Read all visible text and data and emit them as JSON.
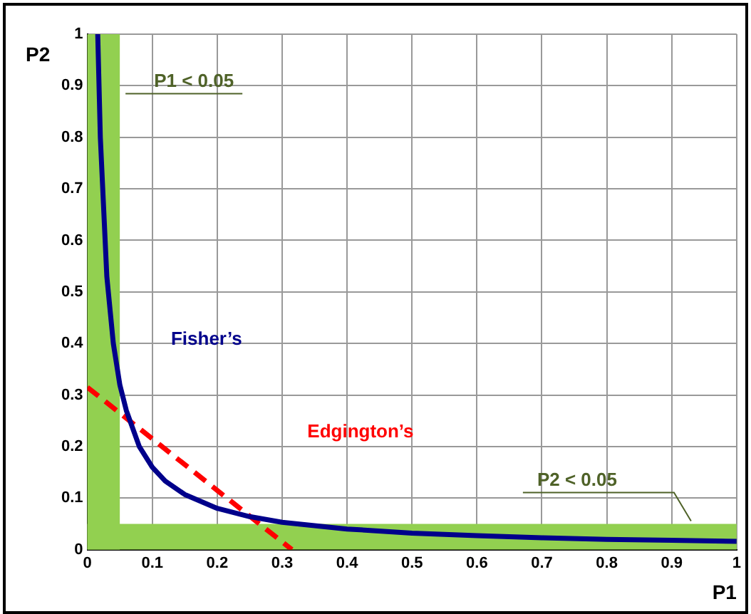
{
  "chart_data": {
    "type": "line",
    "xlabel": "P1",
    "ylabel": "P2",
    "xlim": [
      0,
      1
    ],
    "ylim": [
      0,
      1
    ],
    "xticks": [
      0,
      0.1,
      0.2,
      0.3,
      0.4,
      0.5,
      0.6,
      0.7,
      0.8,
      0.9,
      1
    ],
    "yticks": [
      0,
      0.1,
      0.2,
      0.3,
      0.4,
      0.5,
      0.6,
      0.7,
      0.8,
      0.9,
      1
    ],
    "grid": true,
    "legend": false,
    "marker": "none",
    "bands": [
      {
        "axis": "x",
        "from": 0,
        "to": 0.05,
        "label": "P1 < 0.05",
        "color": "#92d050"
      },
      {
        "axis": "y",
        "from": 0,
        "to": 0.05,
        "label": "P2 < 0.05",
        "color": "#92d050"
      }
    ],
    "series": [
      {
        "name": "Fisher’s",
        "color": "#00008b",
        "line_style": "solid",
        "x": [
          0.016,
          0.02,
          0.03,
          0.04,
          0.05,
          0.06,
          0.08,
          0.1,
          0.12,
          0.15,
          0.2,
          0.25,
          0.3,
          0.4,
          0.5,
          0.6,
          0.7,
          0.8,
          0.9,
          1
        ],
        "values": [
          1,
          0.8,
          0.53,
          0.4,
          0.32,
          0.27,
          0.2,
          0.16,
          0.133,
          0.107,
          0.08,
          0.064,
          0.053,
          0.04,
          0.032,
          0.027,
          0.023,
          0.02,
          0.018,
          0.016
        ]
      },
      {
        "name": "Edgington’s",
        "color": "#ff0000",
        "line_style": "dashed",
        "x": [
          0,
          0.315
        ],
        "values": [
          0.315,
          0
        ]
      }
    ]
  }
}
